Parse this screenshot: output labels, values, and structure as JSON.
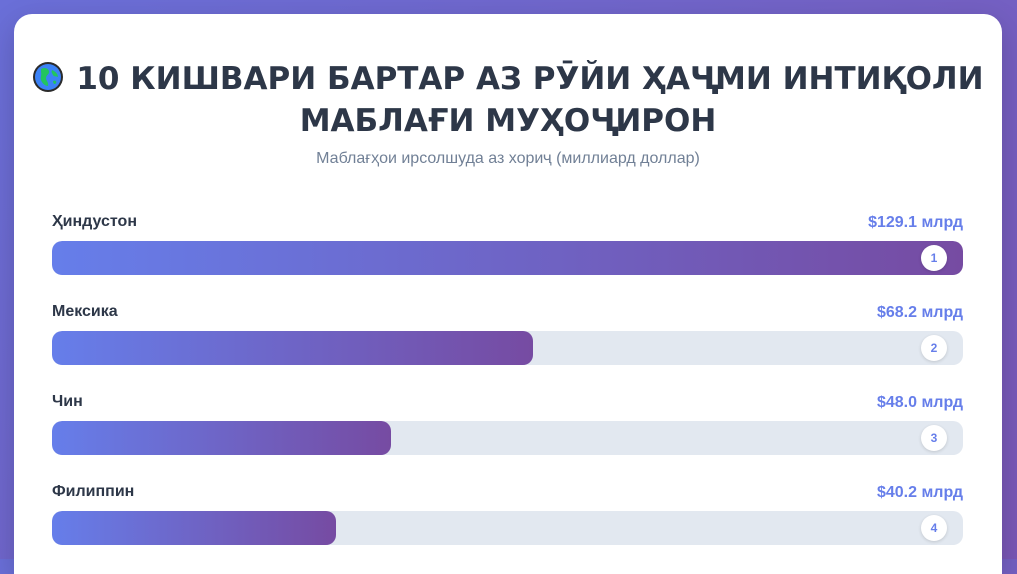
{
  "page": {
    "title": "10 КИШВАРИ БАРТАР АЗ РӮЙИ ҲАҶМИ ИНТИҚОЛИ МАБЛАҒИ МУҲОҶИРОН",
    "title_icon": "globe-icon",
    "subtitle": "Маблағҳои ирсолшуда аз хориҷ (миллиард доллар)"
  },
  "colors": {
    "bar_start": "#667eea",
    "bar_end": "#764ba2",
    "track": "#e2e8f0",
    "value_text": "#667eea"
  },
  "chart_data": {
    "type": "bar",
    "orientation": "horizontal",
    "title": "10 КИШВАРИ БАРТАР АЗ РӮЙИ ҲАҶМИ ИНТИҚОЛИ МАБЛАҒИ МУҲОҶИРОН",
    "subtitle": "Маблағҳои ирсолшуда аз хориҷ (миллиард доллар)",
    "max_value": 129.1,
    "items": [
      {
        "rank": "1",
        "category": "Ҳиндустон",
        "value": 129.1,
        "label": "$129.1 млрд"
      },
      {
        "rank": "2",
        "category": "Мексика",
        "value": 68.2,
        "label": "$68.2 млрд"
      },
      {
        "rank": "3",
        "category": "Чин",
        "value": 48.0,
        "label": "$48.0 млрд"
      },
      {
        "rank": "4",
        "category": "Филиппин",
        "value": 40.2,
        "label": "$40.2 млрд"
      }
    ]
  }
}
